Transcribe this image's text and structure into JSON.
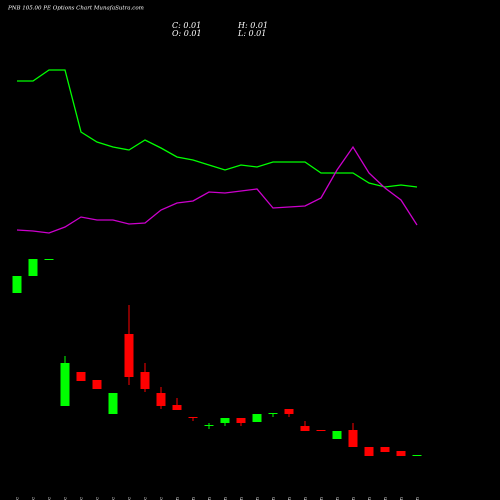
{
  "chart_data": {
    "type": "candlestick",
    "title": "PNB 105.00 PE Options Chart MunafaSutra.com",
    "info": [
      "C: 0.01",
      "H: 0.01",
      "O: 0.01",
      "L: 0.01"
    ],
    "categories": [
      "17 Dec",
      "18 Dec",
      "19 Dec",
      "22 Dec",
      "23 Dec",
      "24 Dec",
      "26 Dec",
      "29 Dec",
      "30 Dec",
      "31 Dec",
      "01 Jan",
      "02 Jan",
      "05 Jan",
      "06 Jan",
      "07 Jan",
      "08 Jan",
      "09 Jan",
      "12 Jan",
      "13 Jan",
      "14 Jan",
      "16 Jan",
      "19 Jan",
      "20 Jan",
      "21 Jan",
      "22 Jan",
      "23 Jan"
    ],
    "open": [
      177,
      194,
      211,
      64,
      98,
      90,
      56,
      136,
      98,
      77,
      65,
      53,
      44,
      47,
      52,
      48,
      56,
      61,
      44,
      40,
      31,
      40,
      23,
      23,
      19,
      14
    ],
    "high": [
      194,
      211,
      211,
      114,
      98,
      90,
      77,
      165,
      107,
      83,
      72,
      53,
      47,
      52,
      52,
      56,
      57,
      61,
      49,
      40,
      39,
      47,
      23,
      23,
      19,
      15
    ],
    "low": [
      177,
      194,
      210,
      64,
      89,
      81,
      56,
      85,
      78,
      61,
      60,
      49,
      41,
      44,
      44,
      48,
      53,
      53,
      39,
      39,
      31,
      23,
      14,
      18,
      14,
      14
    ],
    "close": [
      194,
      211,
      211,
      107,
      89,
      81,
      77,
      93,
      81,
      64,
      60,
      52,
      45,
      52,
      47,
      56,
      57,
      56,
      39,
      39,
      39,
      23,
      14,
      18,
      14,
      15
    ],
    "up_color": "#00ff00",
    "down_color": "#ff0000",
    "lines": [
      {
        "color": "#00ff00",
        "values": [
          389,
          389,
          400,
          400,
          338,
          328,
          323,
          320,
          330,
          322,
          313,
          310,
          305,
          300,
          305,
          303,
          308,
          308,
          308,
          297,
          297,
          297,
          287,
          283,
          285,
          283
        ]
      },
      {
        "color": "#cc00cc",
        "values": [
          240,
          239,
          237,
          243,
          253,
          250,
          250,
          246,
          247,
          260,
          267,
          269,
          278,
          277,
          279,
          281,
          262,
          263,
          264,
          272,
          300,
          323,
          297,
          282,
          270,
          245
        ]
      }
    ],
    "ylim": [
      0,
      470
    ]
  }
}
